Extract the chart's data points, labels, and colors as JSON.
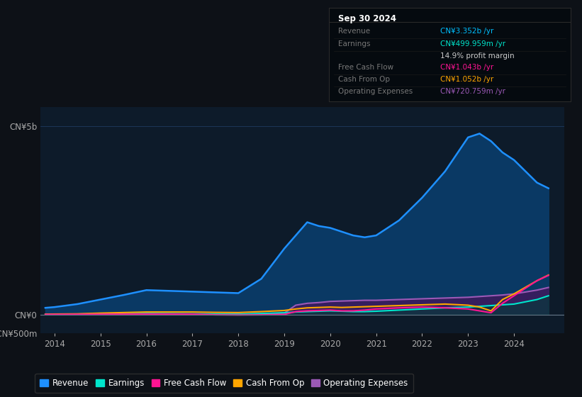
{
  "bg_color": "#0d1117",
  "plot_bg_color": "#0d1b2a",
  "grid_color": "#1e3a5f",
  "title_box_date": "Sep 30 2024",
  "years": [
    2013.8,
    2014,
    2014.5,
    2015,
    2015.5,
    2016,
    2016.5,
    2017,
    2017.5,
    2018,
    2018.5,
    2019,
    2019.25,
    2019.5,
    2019.75,
    2020,
    2020.25,
    2020.5,
    2020.75,
    2021,
    2021.5,
    2022,
    2022.5,
    2023,
    2023.25,
    2023.5,
    2023.75,
    2024,
    2024.5,
    2024.75
  ],
  "revenue": [
    0.18,
    0.2,
    0.28,
    0.4,
    0.52,
    0.65,
    0.63,
    0.61,
    0.59,
    0.57,
    0.95,
    1.75,
    2.1,
    2.45,
    2.35,
    2.3,
    2.2,
    2.1,
    2.05,
    2.1,
    2.5,
    3.1,
    3.8,
    4.7,
    4.8,
    4.6,
    4.3,
    4.1,
    3.5,
    3.35
  ],
  "earnings": [
    0.01,
    0.01,
    0.015,
    0.02,
    0.025,
    0.03,
    0.025,
    0.02,
    0.015,
    0.01,
    0.03,
    0.05,
    0.07,
    0.08,
    0.09,
    0.1,
    0.09,
    0.08,
    0.08,
    0.09,
    0.12,
    0.15,
    0.18,
    0.2,
    0.22,
    0.24,
    0.26,
    0.28,
    0.4,
    0.5
  ],
  "free_cash_flow": [
    0.005,
    0.005,
    0.008,
    0.01,
    0.012,
    0.015,
    0.014,
    0.013,
    -0.005,
    -0.01,
    -0.005,
    0.005,
    0.08,
    0.1,
    0.11,
    0.12,
    0.1,
    0.1,
    0.12,
    0.15,
    0.18,
    0.2,
    0.18,
    0.15,
    0.1,
    0.05,
    0.3,
    0.5,
    0.9,
    1.04
  ],
  "cash_from_op": [
    0.01,
    0.015,
    0.02,
    0.04,
    0.055,
    0.07,
    0.07,
    0.07,
    0.06,
    0.055,
    0.08,
    0.11,
    0.15,
    0.18,
    0.19,
    0.2,
    0.19,
    0.2,
    0.21,
    0.22,
    0.24,
    0.26,
    0.28,
    0.25,
    0.2,
    0.1,
    0.4,
    0.55,
    0.9,
    1.05
  ],
  "operating_expenses": [
    0.005,
    0.005,
    0.008,
    0.01,
    0.012,
    0.015,
    0.015,
    0.015,
    0.015,
    0.015,
    0.02,
    0.04,
    0.25,
    0.3,
    0.32,
    0.35,
    0.36,
    0.37,
    0.38,
    0.38,
    0.4,
    0.42,
    0.44,
    0.46,
    0.48,
    0.5,
    0.52,
    0.55,
    0.65,
    0.72
  ],
  "revenue_color": "#1e90ff",
  "revenue_fill": "#0a3d6b",
  "earnings_color": "#00e5cc",
  "earnings_fill": "#003d35",
  "free_cash_flow_color": "#ff1493",
  "cash_from_op_color": "#ffa500",
  "operating_expenses_color": "#9b59b6",
  "operating_expenses_fill": "#3d1a5e",
  "ylim": [
    -0.5,
    5.5
  ],
  "ytick_positions": [
    -0.5,
    0,
    5
  ],
  "ytick_labels": [
    "-CN¥500m",
    "CN¥0",
    "CN¥5b"
  ],
  "xticks": [
    2014,
    2015,
    2016,
    2017,
    2018,
    2019,
    2020,
    2021,
    2022,
    2023,
    2024
  ],
  "legend_items": [
    {
      "label": "Revenue",
      "color": "#1e90ff"
    },
    {
      "label": "Earnings",
      "color": "#00e5cc"
    },
    {
      "label": "Free Cash Flow",
      "color": "#ff1493"
    },
    {
      "label": "Cash From Op",
      "color": "#ffa500"
    },
    {
      "label": "Operating Expenses",
      "color": "#9b59b6"
    }
  ],
  "info_rows": [
    {
      "label": "Revenue",
      "value": "CN¥3.352b /yr",
      "value_color": "#00bfff"
    },
    {
      "label": "Earnings",
      "value": "CN¥499.959m /yr",
      "value_color": "#00e5cc"
    },
    {
      "label": "",
      "value": "14.9% profit margin",
      "value_color": "#cccccc"
    },
    {
      "label": "Free Cash Flow",
      "value": "CN¥1.043b /yr",
      "value_color": "#ff1493"
    },
    {
      "label": "Cash From Op",
      "value": "CN¥1.052b /yr",
      "value_color": "#ffa500"
    },
    {
      "label": "Operating Expenses",
      "value": "CN¥720.759m /yr",
      "value_color": "#9b59b6"
    }
  ]
}
